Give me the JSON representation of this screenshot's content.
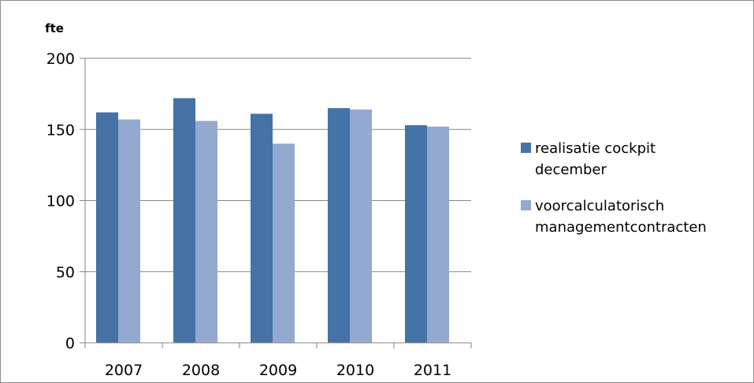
{
  "chart_data": {
    "type": "bar",
    "ylabel": "fte",
    "categories": [
      "2007",
      "2008",
      "2009",
      "2010",
      "2011"
    ],
    "series": [
      {
        "name": "realisatie cockpit december",
        "name_lines": [
          "realisatie cockpit",
          "december"
        ],
        "values": [
          162,
          172,
          161,
          165,
          153
        ],
        "color": "#4572a7"
      },
      {
        "name": "voorcalculatorisch managementcontracten",
        "name_lines": [
          "voorcalculatorisch",
          "managementcontracten"
        ],
        "values": [
          157,
          156,
          140,
          164,
          152
        ],
        "color": "#93a9cf"
      }
    ],
    "ylim": [
      0,
      200
    ],
    "yticks": [
      "0",
      "50",
      "100",
      "150",
      "200"
    ],
    "grid": true,
    "legend": "right"
  }
}
